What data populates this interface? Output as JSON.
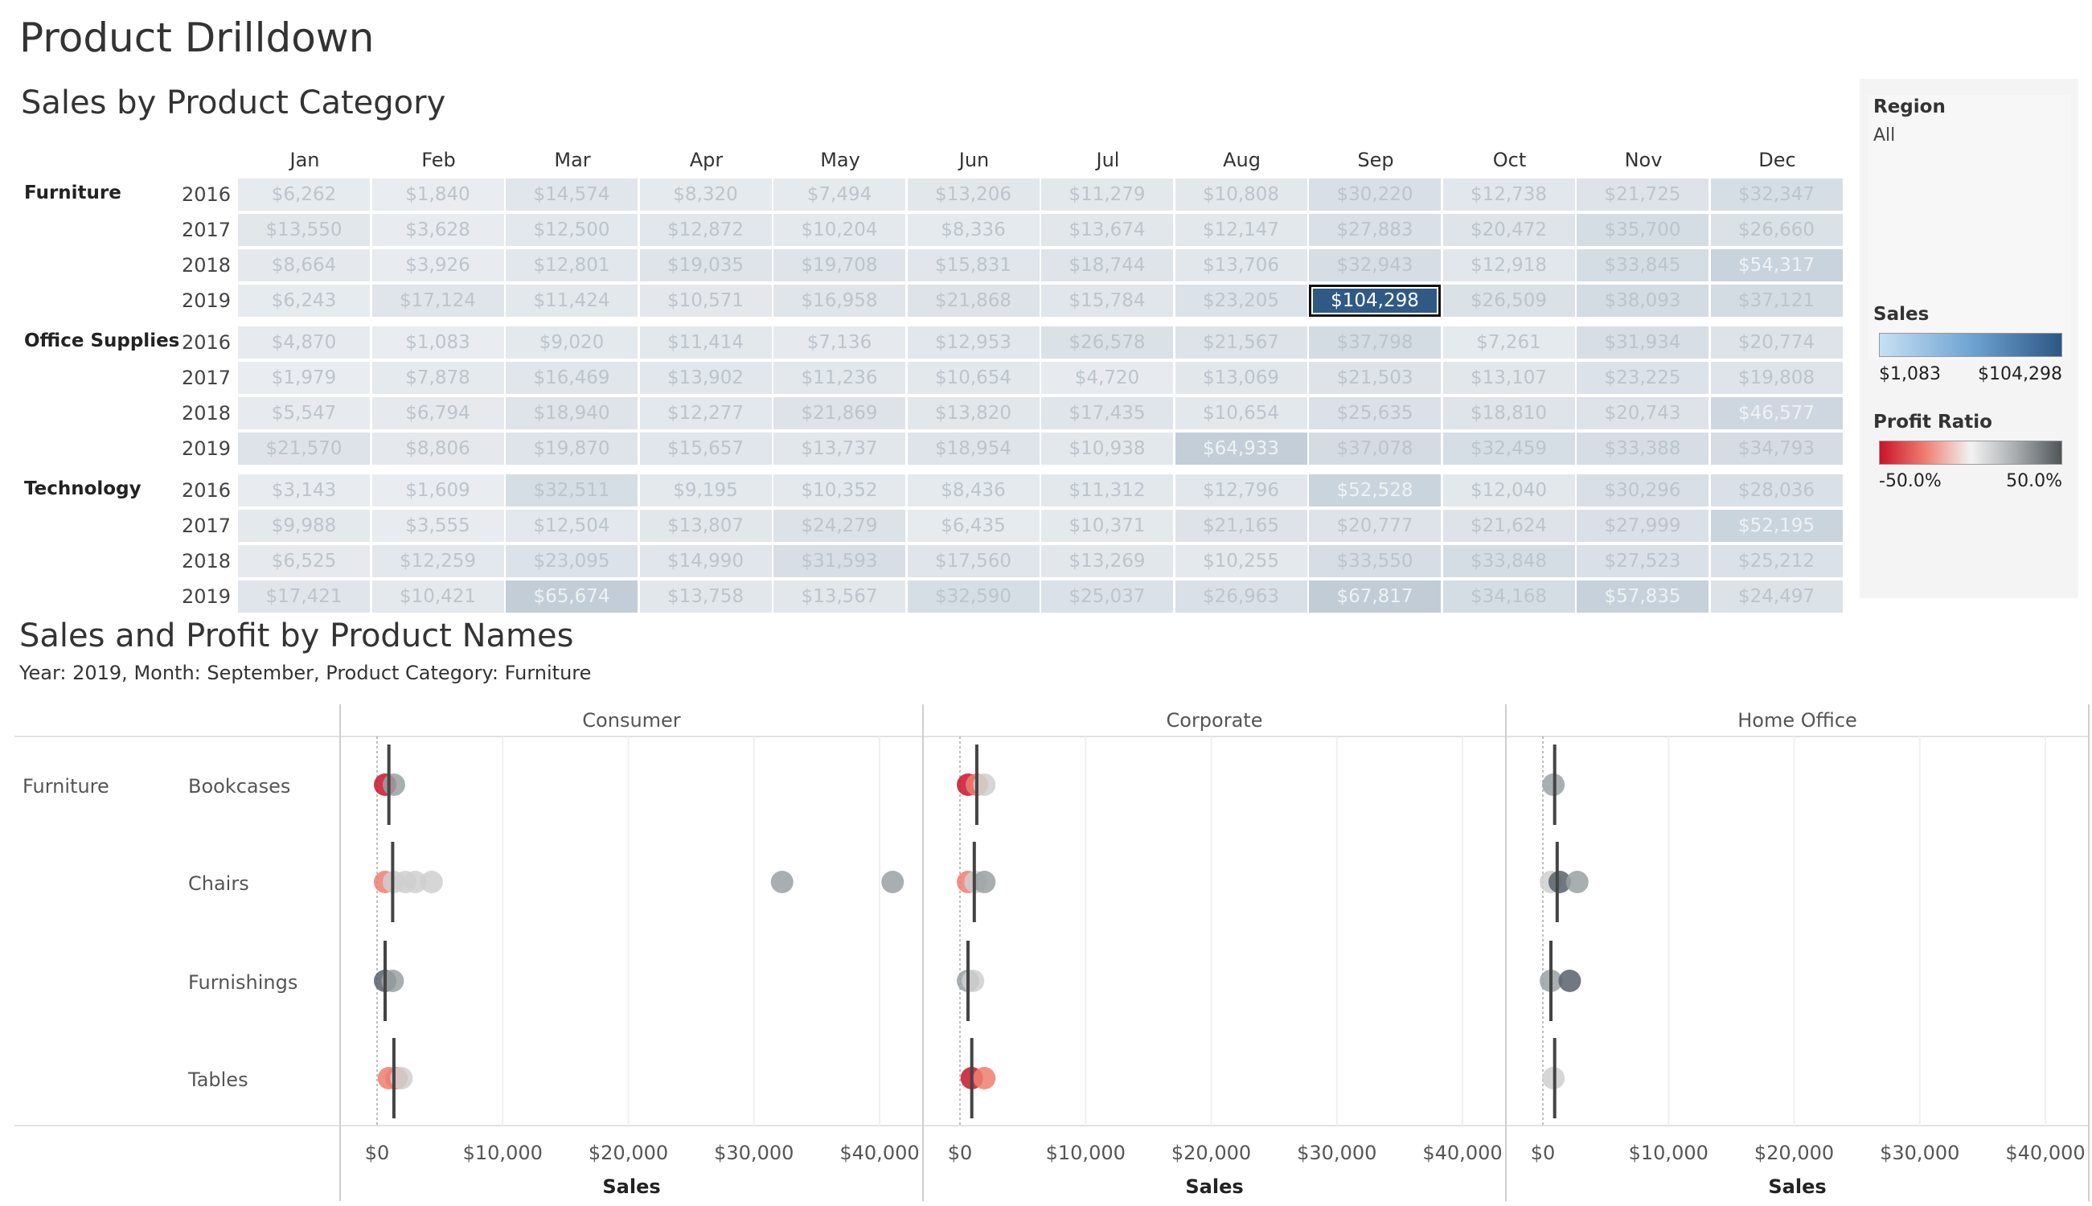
{
  "page_title": "Product Drilldown",
  "heatmap": {
    "title": "Sales by Product Category",
    "months": [
      "Jan",
      "Feb",
      "Mar",
      "Apr",
      "May",
      "Jun",
      "Jul",
      "Aug",
      "Sep",
      "Oct",
      "Nov",
      "Dec"
    ],
    "categories": [
      {
        "name": "Furniture",
        "rows": [
          {
            "year": "2016",
            "values": [
              6262,
              1840,
              14574,
              8320,
              7494,
              13206,
              11279,
              10808,
              30220,
              12738,
              21725,
              32347
            ]
          },
          {
            "year": "2017",
            "values": [
              13550,
              3628,
              12500,
              12872,
              10204,
              8336,
              13674,
              12147,
              27883,
              20472,
              35700,
              26660
            ]
          },
          {
            "year": "2018",
            "values": [
              8664,
              3926,
              12801,
              19035,
              19708,
              15831,
              18744,
              13706,
              32943,
              12918,
              33845,
              54317
            ]
          },
          {
            "year": "2019",
            "values": [
              6243,
              17124,
              11424,
              10571,
              16958,
              21868,
              15784,
              23205,
              104298,
              26509,
              38093,
              37121
            ]
          }
        ]
      },
      {
        "name": "Office Supplies",
        "rows": [
          {
            "year": "2016",
            "values": [
              4870,
              1083,
              9020,
              11414,
              7136,
              12953,
              26578,
              21567,
              37798,
              7261,
              31934,
              20774
            ]
          },
          {
            "year": "2017",
            "values": [
              1979,
              7878,
              16469,
              13902,
              11236,
              10654,
              4720,
              13069,
              21503,
              13107,
              23225,
              19808
            ]
          },
          {
            "year": "2018",
            "values": [
              5547,
              6794,
              18940,
              12277,
              21869,
              13820,
              17435,
              10654,
              25635,
              18810,
              20743,
              46577
            ]
          },
          {
            "year": "2019",
            "values": [
              21570,
              8806,
              19870,
              15657,
              13737,
              18954,
              10938,
              64933,
              37078,
              32459,
              33388,
              34793
            ]
          }
        ]
      },
      {
        "name": "Technology",
        "rows": [
          {
            "year": "2016",
            "values": [
              3143,
              1609,
              32511,
              9195,
              10352,
              8436,
              11312,
              12796,
              52528,
              12040,
              30296,
              28036
            ]
          },
          {
            "year": "2017",
            "values": [
              9988,
              3555,
              12504,
              13807,
              24279,
              6435,
              10371,
              21165,
              20777,
              21624,
              27999,
              52195
            ]
          },
          {
            "year": "2018",
            "values": [
              6525,
              12259,
              23095,
              14990,
              31593,
              17560,
              13269,
              10255,
              33550,
              33848,
              27523,
              25212
            ]
          },
          {
            "year": "2019",
            "values": [
              17421,
              10421,
              65674,
              13758,
              13567,
              32590,
              25037,
              26963,
              67817,
              34168,
              57835,
              24497
            ]
          }
        ]
      }
    ],
    "selected": {
      "category": "Furniture",
      "year": "2019",
      "month": "Sep"
    }
  },
  "legend": {
    "region_label": "Region",
    "region_value": "All",
    "sales_label": "Sales",
    "sales_min": "$1,083",
    "sales_max": "$104,298",
    "profit_label": "Profit Ratio",
    "profit_min": "-50.0%",
    "profit_max": "50.0%"
  },
  "scatter": {
    "title": "Sales and Profit by Product Names",
    "subtitle": "Year: 2019, Month: September, Product Category: Furniture",
    "category_label": "Furniture",
    "segments": [
      "Consumer",
      "Corporate",
      "Home Office"
    ],
    "subcategories": [
      "Bookcases",
      "Chairs",
      "Furnishings",
      "Tables"
    ],
    "x_ticks": [
      "$0",
      "$10,000",
      "$20,000",
      "$30,000",
      "$40,000"
    ],
    "x_axis_label": "Sales",
    "colors": {
      "neg": "#c9132a",
      "neg_light": "#ef7e71",
      "neutral": "#cfcfcf",
      "pos": "#9aa0a3",
      "pos_dark": "#59606a"
    },
    "chart_data": {
      "type": "scatter",
      "x_range": [
        0,
        42000
      ],
      "points": [
        {
          "segment": "Consumer",
          "sub": "Bookcases",
          "x": 0,
          "color": "neg"
        },
        {
          "segment": "Consumer",
          "sub": "Bookcases",
          "x": 700,
          "color": "pos"
        },
        {
          "segment": "Consumer",
          "sub": "Chairs",
          "x": 0,
          "color": "neg_light"
        },
        {
          "segment": "Consumer",
          "sub": "Chairs",
          "x": 700,
          "color": "neutral"
        },
        {
          "segment": "Consumer",
          "sub": "Chairs",
          "x": 1600,
          "color": "neutral"
        },
        {
          "segment": "Consumer",
          "sub": "Chairs",
          "x": 2400,
          "color": "neutral"
        },
        {
          "segment": "Consumer",
          "sub": "Chairs",
          "x": 3700,
          "color": "neutral"
        },
        {
          "segment": "Consumer",
          "sub": "Chairs",
          "x": 31600,
          "color": "pos"
        },
        {
          "segment": "Consumer",
          "sub": "Chairs",
          "x": 40400,
          "color": "pos"
        },
        {
          "segment": "Consumer",
          "sub": "Furnishings",
          "x": 0,
          "color": "pos_dark"
        },
        {
          "segment": "Consumer",
          "sub": "Furnishings",
          "x": 600,
          "color": "pos"
        },
        {
          "segment": "Consumer",
          "sub": "Tables",
          "x": 300,
          "color": "neg_light"
        },
        {
          "segment": "Consumer",
          "sub": "Tables",
          "x": 900,
          "color": "neg_light"
        },
        {
          "segment": "Consumer",
          "sub": "Tables",
          "x": 1300,
          "color": "neutral"
        },
        {
          "segment": "Corporate",
          "sub": "Bookcases",
          "x": 0,
          "color": "neg"
        },
        {
          "segment": "Corporate",
          "sub": "Bookcases",
          "x": 700,
          "color": "neg_light"
        },
        {
          "segment": "Corporate",
          "sub": "Bookcases",
          "x": 1300,
          "color": "neutral"
        },
        {
          "segment": "Corporate",
          "sub": "Chairs",
          "x": 0,
          "color": "neg_light"
        },
        {
          "segment": "Corporate",
          "sub": "Chairs",
          "x": 600,
          "color": "neutral"
        },
        {
          "segment": "Corporate",
          "sub": "Chairs",
          "x": 1300,
          "color": "pos"
        },
        {
          "segment": "Corporate",
          "sub": "Furnishings",
          "x": 0,
          "color": "pos"
        },
        {
          "segment": "Corporate",
          "sub": "Furnishings",
          "x": 400,
          "color": "neutral"
        },
        {
          "segment": "Corporate",
          "sub": "Tables",
          "x": 300,
          "color": "neg"
        },
        {
          "segment": "Corporate",
          "sub": "Tables",
          "x": 1300,
          "color": "neg_light"
        },
        {
          "segment": "Home Office",
          "sub": "Bookcases",
          "x": 200,
          "color": "pos"
        },
        {
          "segment": "Home Office",
          "sub": "Chairs",
          "x": 0,
          "color": "neutral"
        },
        {
          "segment": "Home Office",
          "sub": "Chairs",
          "x": 700,
          "color": "pos_dark"
        },
        {
          "segment": "Home Office",
          "sub": "Chairs",
          "x": 2100,
          "color": "pos"
        },
        {
          "segment": "Home Office",
          "sub": "Furnishings",
          "x": 0,
          "color": "pos"
        },
        {
          "segment": "Home Office",
          "sub": "Furnishings",
          "x": 1500,
          "color": "pos_dark"
        },
        {
          "segment": "Home Office",
          "sub": "Tables",
          "x": 200,
          "color": "neutral"
        }
      ],
      "reference_lines": [
        {
          "segment": "Consumer",
          "sub": "Bookcases",
          "x": 300
        },
        {
          "segment": "Consumer",
          "sub": "Chairs",
          "x": 600
        },
        {
          "segment": "Consumer",
          "sub": "Furnishings",
          "x": 0
        },
        {
          "segment": "Consumer",
          "sub": "Tables",
          "x": 700
        },
        {
          "segment": "Corporate",
          "sub": "Bookcases",
          "x": 700
        },
        {
          "segment": "Corporate",
          "sub": "Chairs",
          "x": 500
        },
        {
          "segment": "Corporate",
          "sub": "Furnishings",
          "x": 0
        },
        {
          "segment": "Corporate",
          "sub": "Tables",
          "x": 300
        },
        {
          "segment": "Home Office",
          "sub": "Bookcases",
          "x": 300
        },
        {
          "segment": "Home Office",
          "sub": "Chairs",
          "x": 500
        },
        {
          "segment": "Home Office",
          "sub": "Furnishings",
          "x": 0
        },
        {
          "segment": "Home Office",
          "sub": "Tables",
          "x": 300
        }
      ]
    }
  }
}
